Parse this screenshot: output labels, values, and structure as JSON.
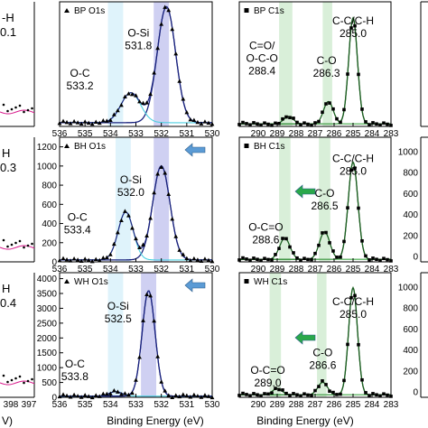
{
  "figure": {
    "left_partial": {
      "labels": [
        "-H",
        "0.1",
        "H",
        "0.3",
        "H",
        "0.4"
      ],
      "x_ticks": [
        "398",
        "397"
      ],
      "xlabel_fragment": "V)"
    },
    "right_partial": {
      "y_ticks_row2": [
        "1000",
        "800",
        "600",
        "400",
        "200",
        "0"
      ],
      "y_ticks_row3": [
        "1000",
        "800",
        "600",
        "400",
        "200",
        "0"
      ]
    }
  },
  "chart_data": [
    {
      "type": "line",
      "panel": "BP O1s",
      "legend": "BP O1s",
      "xlim": [
        530,
        536
      ],
      "x_ticks": [
        536,
        535,
        534,
        533,
        532,
        531,
        530
      ],
      "x_reversed": true,
      "y_ticks": [],
      "bands": [
        [
          533.5,
          534.1
        ],
        [
          531.7,
          532.3
        ]
      ],
      "annotations": [
        {
          "name": "O-Si",
          "value": "531.8",
          "x": 532.9,
          "y": 0.72
        },
        {
          "name": "O-C",
          "value": "533.2",
          "x": 535.2,
          "y": 0.4
        }
      ],
      "peaks": [
        {
          "center": 531.8,
          "height": 0.93,
          "width": 0.85,
          "color": "#1a237e"
        },
        {
          "center": 533.2,
          "height": 0.24,
          "width": 0.9,
          "color": "#4dd0e1"
        }
      ],
      "baseline": 0.03,
      "ylim": [
        0,
        1.0
      ]
    },
    {
      "type": "line",
      "panel": "BP C1s",
      "legend": "BP C1s",
      "xlim": [
        283,
        291
      ],
      "x_ticks": [
        290,
        289,
        288,
        287,
        286,
        285,
        284,
        283
      ],
      "x_reversed": true,
      "y_ticks": [],
      "bands": [
        [
          288.2,
          288.9
        ],
        [
          286.1,
          286.6
        ]
      ],
      "annotations": [
        {
          "name": "C-C/C-H",
          "value": "285.0",
          "x": 285.0,
          "y": 0.82
        },
        {
          "name": "C=O/\nO-C-O",
          "value": "288.4",
          "x": 289.8,
          "y": 0.62
        },
        {
          "name": "C-O",
          "value": "286.3",
          "x": 286.4,
          "y": 0.5
        }
      ],
      "peaks": [
        {
          "center": 285.0,
          "height": 0.85,
          "width": 0.55,
          "color": "#1b5e20"
        },
        {
          "center": 286.3,
          "height": 0.18,
          "width": 0.6,
          "color": "#43a047"
        },
        {
          "center": 288.4,
          "height": 0.06,
          "width": 0.6,
          "color": "#66bb6a"
        }
      ],
      "baseline": 0.02,
      "ylim": [
        0,
        1.0
      ]
    },
    {
      "type": "line",
      "panel": "BH O1s",
      "legend": "BH O1s",
      "xlim": [
        530,
        536
      ],
      "x_ticks": [
        536,
        535,
        534,
        533,
        532,
        531,
        530
      ],
      "x_reversed": true,
      "y_ticks": [
        0,
        200,
        400,
        600,
        800,
        1000,
        1200
      ],
      "bands": [
        [
          533.2,
          533.8
        ],
        [
          531.7,
          532.3
        ]
      ],
      "annotations": [
        {
          "name": "O-Si",
          "value": "532.0",
          "x": 533.2,
          "y": 820
        },
        {
          "name": "O-C",
          "value": "533.4",
          "x": 535.3,
          "y": 430
        }
      ],
      "peaks": [
        {
          "center": 532.0,
          "height": 980,
          "width": 0.8,
          "color": "#1a237e"
        },
        {
          "center": 533.4,
          "height": 500,
          "width": 0.7,
          "color": "#4dd0e1"
        }
      ],
      "baseline": 20,
      "ylim": [
        0,
        1300
      ]
    },
    {
      "type": "line",
      "panel": "BH C1s",
      "legend": "BH C1s",
      "xlim": [
        283,
        291
      ],
      "x_ticks": [
        290,
        289,
        288,
        287,
        286,
        285,
        284,
        283
      ],
      "x_reversed": true,
      "y_ticks": [],
      "bands": [
        [
          288.3,
          288.9
        ],
        [
          286.2,
          286.8
        ]
      ],
      "annotations": [
        {
          "name": "C-C/C-H",
          "value": "285.0",
          "x": 285.0,
          "y": 0.8
        },
        {
          "name": "C-O",
          "value": "286.5",
          "x": 286.5,
          "y": 0.52
        },
        {
          "name": "O-C=O",
          "value": "288.6",
          "x": 289.6,
          "y": 0.25
        }
      ],
      "peaks": [
        {
          "center": 285.0,
          "height": 0.78,
          "width": 0.6,
          "color": "#1b5e20"
        },
        {
          "center": 286.5,
          "height": 0.22,
          "width": 0.65,
          "color": "#43a047"
        },
        {
          "center": 288.6,
          "height": 0.17,
          "width": 0.65,
          "color": "#66bb6a"
        }
      ],
      "baseline": 0.02,
      "ylim": [
        0,
        1.0
      ]
    },
    {
      "type": "line",
      "panel": "WH O1s",
      "legend": "WH O1s",
      "xlim": [
        530,
        536
      ],
      "x_ticks": [
        536,
        535,
        534,
        533,
        532,
        531,
        530
      ],
      "x_reversed": true,
      "y_ticks": [
        0,
        500,
        1000,
        1500,
        2000,
        2500,
        3000,
        3500,
        4000
      ],
      "bands": [
        [
          533.5,
          534.1
        ],
        [
          532.2,
          532.8
        ]
      ],
      "annotations": [
        {
          "name": "O-Si",
          "value": "532.5",
          "x": 533.7,
          "y": 2950
        },
        {
          "name": "O-C",
          "value": "533.8",
          "x": 535.4,
          "y": 1000
        }
      ],
      "peaks": [
        {
          "center": 532.5,
          "height": 3550,
          "width": 0.6,
          "color": "#1a237e"
        },
        {
          "center": 533.8,
          "height": 150,
          "width": 0.6,
          "color": "#4dd0e1"
        }
      ],
      "baseline": 40,
      "ylim": [
        0,
        4200
      ]
    },
    {
      "type": "line",
      "panel": "WH C1s",
      "legend": "WH C1s",
      "xlim": [
        283,
        291
      ],
      "x_ticks": [
        290,
        289,
        288,
        287,
        286,
        285,
        284,
        283
      ],
      "x_reversed": true,
      "y_ticks": [],
      "bands": [
        [
          288.8,
          289.4
        ],
        [
          286.4,
          286.9
        ]
      ],
      "annotations": [
        {
          "name": "C-C/C-H",
          "value": "285.0",
          "x": 285.0,
          "y": 0.74
        },
        {
          "name": "C-O",
          "value": "286.6",
          "x": 286.6,
          "y": 0.33
        },
        {
          "name": "O-C=O",
          "value": "289.0",
          "x": 289.5,
          "y": 0.19
        }
      ],
      "peaks": [
        {
          "center": 285.0,
          "height": 0.86,
          "width": 0.55,
          "color": "#1b5e20"
        },
        {
          "center": 286.6,
          "height": 0.1,
          "width": 0.6,
          "color": "#43a047"
        },
        {
          "center": 289.0,
          "height": 0.05,
          "width": 0.6,
          "color": "#66bb6a"
        }
      ],
      "baseline": 0.02,
      "ylim": [
        0,
        1.0
      ]
    }
  ],
  "axes": {
    "xlabel": "Binding Energy (eV)"
  },
  "colors": {
    "band_light": "#dff3fb",
    "band_blue": "#cfd0f2",
    "band_green": "#d9efd9",
    "arrow_blue": "#5b9bd5",
    "arrow_green": "#2aa84a",
    "envelope_blue": "#1a237e",
    "envelope_green": "#1b5e20"
  }
}
